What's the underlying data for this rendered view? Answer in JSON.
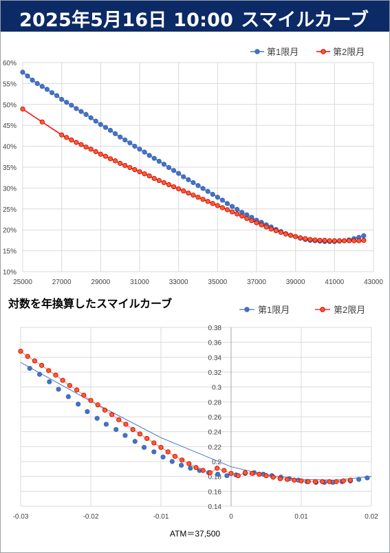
{
  "header": {
    "datetime": "2025年5月16日 10:00",
    "title": "スマイルカーブ"
  },
  "colors": {
    "header_bg": "#0b2a66",
    "series1": "#4472c4",
    "series2": "#ff0000"
  },
  "chart_data": [
    {
      "type": "scatter",
      "title": "",
      "x_ticks": [
        "25000",
        "27000",
        "29000",
        "31000",
        "33000",
        "35000",
        "37000",
        "39000",
        "41000",
        "43000"
      ],
      "y_ticks": [
        "10%",
        "15%",
        "20%",
        "25%",
        "30%",
        "35%",
        "40%",
        "45%",
        "50%",
        "55%",
        "60%"
      ],
      "xlim": [
        25000,
        43000
      ],
      "ylim": [
        0.1,
        0.6
      ],
      "legend_position": "top-right",
      "grid": true,
      "series": [
        {
          "name": "第1限月",
          "x": [
            25000,
            25250,
            25500,
            25750,
            26000,
            26250,
            26500,
            26750,
            27000,
            27250,
            27500,
            27750,
            28000,
            28250,
            28500,
            28750,
            29000,
            29250,
            29500,
            29750,
            30000,
            30250,
            30500,
            30750,
            31000,
            31250,
            31500,
            31750,
            32000,
            32250,
            32500,
            32750,
            33000,
            33250,
            33500,
            33750,
            34000,
            34250,
            34500,
            34750,
            35000,
            35250,
            35500,
            35750,
            36000,
            36250,
            36500,
            36750,
            37000,
            37250,
            37500,
            37750,
            38000,
            38250,
            38500,
            38750,
            39000,
            39250,
            39500,
            39750,
            40000,
            40250,
            40500,
            40750,
            41000,
            41250,
            41500,
            41750,
            42000,
            42250,
            42500
          ],
          "y": [
            0.577,
            0.568,
            0.558,
            0.55,
            0.543,
            0.536,
            0.528,
            0.521,
            0.512,
            0.505,
            0.498,
            0.49,
            0.483,
            0.476,
            0.468,
            0.46,
            0.452,
            0.445,
            0.438,
            0.43,
            0.422,
            0.415,
            0.408,
            0.4,
            0.393,
            0.386,
            0.378,
            0.371,
            0.364,
            0.357,
            0.349,
            0.342,
            0.335,
            0.327,
            0.32,
            0.313,
            0.306,
            0.299,
            0.292,
            0.285,
            0.278,
            0.271,
            0.263,
            0.256,
            0.249,
            0.242,
            0.236,
            0.23,
            0.223,
            0.218,
            0.212,
            0.207,
            0.201,
            0.196,
            0.191,
            0.187,
            0.184,
            0.18,
            0.177,
            0.175,
            0.174,
            0.173,
            0.172,
            0.172,
            0.172,
            0.173,
            0.174,
            0.176,
            0.179,
            0.182,
            0.186
          ]
        },
        {
          "name": "第2限月",
          "x": [
            25000,
            26000,
            27000,
            27250,
            27500,
            27750,
            28000,
            28250,
            28500,
            28750,
            29000,
            29250,
            29500,
            29750,
            30000,
            30250,
            30500,
            30750,
            31000,
            31250,
            31500,
            31750,
            32000,
            32250,
            32500,
            32750,
            33000,
            33250,
            33500,
            33750,
            34000,
            34250,
            34500,
            34750,
            35000,
            35250,
            35500,
            35750,
            36000,
            36250,
            36500,
            36750,
            37000,
            37250,
            37500,
            37750,
            38000,
            38250,
            38500,
            38750,
            39000,
            39250,
            39500,
            39750,
            40000,
            40250,
            40500,
            40750,
            41000,
            41250,
            41500,
            41750,
            42000,
            42250,
            42500
          ],
          "y": [
            0.489,
            0.458,
            0.427,
            0.421,
            0.415,
            0.409,
            0.404,
            0.398,
            0.393,
            0.387,
            0.381,
            0.376,
            0.37,
            0.365,
            0.359,
            0.354,
            0.349,
            0.344,
            0.339,
            0.334,
            0.329,
            0.323,
            0.318,
            0.313,
            0.308,
            0.303,
            0.298,
            0.293,
            0.288,
            0.283,
            0.278,
            0.273,
            0.268,
            0.263,
            0.258,
            0.253,
            0.248,
            0.243,
            0.238,
            0.233,
            0.227,
            0.222,
            0.217,
            0.212,
            0.207,
            0.202,
            0.198,
            0.194,
            0.19,
            0.187,
            0.184,
            0.181,
            0.179,
            0.177,
            0.176,
            0.175,
            0.175,
            0.174,
            0.174,
            0.174,
            0.174,
            0.174,
            0.174,
            0.174,
            0.175
          ]
        }
      ]
    },
    {
      "type": "scatter",
      "title": "対数を年換算したスマイルカーブ",
      "x_ticks": [
        "-0.03",
        "-0.02",
        "-0.01",
        "0",
        "0.01",
        "0.02"
      ],
      "y_ticks": [
        "0.14",
        "0.16",
        "0.18",
        "0.2",
        "0.22",
        "0.24",
        "0.26",
        "0.28",
        "0.3",
        "0.32",
        "0.34",
        "0.36",
        "0.38"
      ],
      "xlim": [
        -0.03,
        0.02
      ],
      "ylim": [
        0.14,
        0.38
      ],
      "legend_position": "top-right",
      "grid": true,
      "annotation": "ATM＝37,500",
      "series": [
        {
          "name": "第1限月",
          "x": [
            -0.0287,
            -0.0273,
            -0.0259,
            -0.0246,
            -0.0232,
            -0.0218,
            -0.0205,
            -0.0191,
            -0.0178,
            -0.0164,
            -0.0151,
            -0.0137,
            -0.0124,
            -0.011,
            -0.0097,
            -0.0084,
            -0.0071,
            -0.0058,
            -0.0045,
            -0.0032,
            -0.0019,
            -0.0006,
            0.0007,
            0.002,
            0.0033,
            0.0046,
            0.0058,
            0.0071,
            0.0083,
            0.0096,
            0.0108,
            0.0121,
            0.0133,
            0.0145,
            0.0158,
            0.017,
            0.0182,
            0.0194
          ],
          "y": [
            0.325,
            0.317,
            0.307,
            0.297,
            0.287,
            0.277,
            0.267,
            0.258,
            0.25,
            0.243,
            0.235,
            0.227,
            0.219,
            0.213,
            0.206,
            0.2,
            0.195,
            0.191,
            0.188,
            0.185,
            0.183,
            0.181,
            0.182,
            0.184,
            0.185,
            0.183,
            0.181,
            0.179,
            0.177,
            0.175,
            0.173,
            0.172,
            0.172,
            0.172,
            0.173,
            0.174,
            0.176,
            0.178
          ]
        },
        {
          "name": "第2限月",
          "x": [
            -0.03,
            -0.029,
            -0.028,
            -0.027,
            -0.026,
            -0.025,
            -0.024,
            -0.023,
            -0.022,
            -0.021,
            -0.02,
            -0.019,
            -0.018,
            -0.017,
            -0.016,
            -0.015,
            -0.014,
            -0.013,
            -0.012,
            -0.011,
            -0.01,
            -0.009,
            -0.008,
            -0.007,
            -0.006,
            -0.005,
            -0.004,
            -0.003,
            -0.002,
            -0.001,
            0.0,
            0.001,
            0.002,
            0.003,
            0.004,
            0.005,
            0.006,
            0.007,
            0.008,
            0.009,
            0.01,
            0.011,
            0.012,
            0.013,
            0.014,
            0.015,
            0.016,
            0.017
          ],
          "y": [
            0.348,
            0.341,
            0.335,
            0.329,
            0.322,
            0.316,
            0.309,
            0.302,
            0.296,
            0.289,
            0.282,
            0.276,
            0.269,
            0.263,
            0.256,
            0.25,
            0.243,
            0.237,
            0.231,
            0.225,
            0.219,
            0.213,
            0.207,
            0.202,
            0.197,
            0.192,
            0.188,
            0.185,
            0.191,
            0.188,
            0.184,
            0.181,
            0.185,
            0.184,
            0.183,
            0.181,
            0.179,
            0.177,
            0.176,
            0.175,
            0.174,
            0.173,
            0.173,
            0.173,
            0.173,
            0.173,
            0.174,
            0.175
          ]
        }
      ]
    }
  ]
}
